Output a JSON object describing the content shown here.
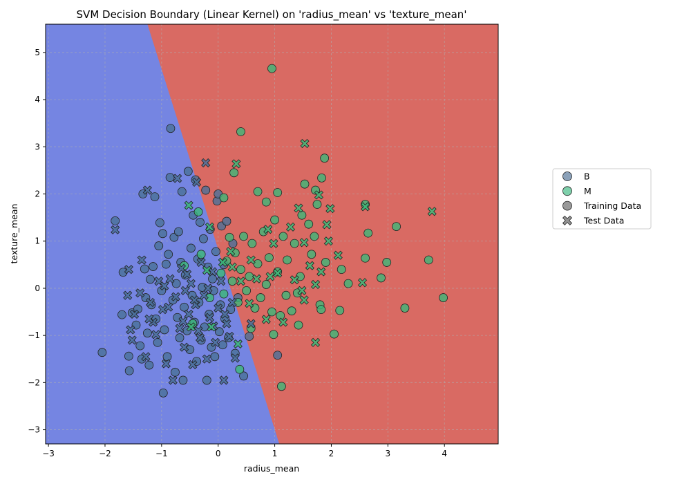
{
  "chart_data": {
    "type": "scatter",
    "title": "SVM Decision Boundary (Linear Kernel) on 'radius_mean' vs 'texture_mean'",
    "xlabel": "radius_mean",
    "ylabel": "texture_mean",
    "xlim": [
      -3.05,
      4.95
    ],
    "ylim": [
      -3.3,
      5.6
    ],
    "xticks": [
      -3,
      -2,
      -1,
      0,
      1,
      2,
      3,
      4
    ],
    "yticks": [
      -3,
      -2,
      -1,
      0,
      1,
      2,
      3,
      4,
      5
    ],
    "grid": true,
    "legend_placement": "right",
    "decision_boundary": {
      "line_points": [
        [
          1.08,
          -3.3
        ],
        [
          -1.25,
          5.6
        ]
      ],
      "left_region_color": "#7585e2",
      "right_region_color": "#d96a63"
    },
    "colors": {
      "B": "#4a7099",
      "M": "#3cb878",
      "marker_edge": "#222222"
    },
    "legend": {
      "entries": [
        {
          "label": "B",
          "marker": "circle",
          "color": "#6e8aa8"
        },
        {
          "label": "M",
          "marker": "circle",
          "color": "#5ec496"
        },
        {
          "label": "Training Data",
          "marker": "circle",
          "color": "#808080"
        },
        {
          "label": "Test Data",
          "marker": "x",
          "color": "#808080"
        }
      ]
    },
    "series": [
      {
        "name": "B",
        "kind": "Training Data",
        "marker": "circle",
        "points": [
          [
            -2.05,
            -1.36
          ],
          [
            -1.82,
            1.43
          ],
          [
            -1.7,
            -0.56
          ],
          [
            -1.68,
            0.34
          ],
          [
            -1.58,
            -1.44
          ],
          [
            -1.57,
            -1.75
          ],
          [
            -1.52,
            -0.52
          ],
          [
            -1.45,
            -0.78
          ],
          [
            -1.42,
            -0.44
          ],
          [
            -1.38,
            -1.22
          ],
          [
            -1.35,
            -1.5
          ],
          [
            -1.33,
            2.0
          ],
          [
            -1.3,
            0.41
          ],
          [
            -1.28,
            -0.2
          ],
          [
            -1.25,
            -0.95
          ],
          [
            -1.22,
            -1.63
          ],
          [
            -1.2,
            0.19
          ],
          [
            -1.18,
            -0.35
          ],
          [
            -1.15,
            0.46
          ],
          [
            -1.12,
            1.94
          ],
          [
            -1.1,
            -0.65
          ],
          [
            -1.07,
            -1.15
          ],
          [
            -1.05,
            0.9
          ],
          [
            -1.03,
            1.39
          ],
          [
            -1.0,
            -0.05
          ],
          [
            -0.98,
            1.16
          ],
          [
            -0.97,
            -2.22
          ],
          [
            -0.95,
            -0.88
          ],
          [
            -0.92,
            0.51
          ],
          [
            -0.9,
            -1.45
          ],
          [
            -0.88,
            0.72
          ],
          [
            -0.85,
            2.35
          ],
          [
            -0.84,
            3.39
          ],
          [
            -0.8,
            -0.25
          ],
          [
            -0.78,
            1.08
          ],
          [
            -0.76,
            -1.78
          ],
          [
            -0.74,
            0.1
          ],
          [
            -0.72,
            -0.62
          ],
          [
            -0.7,
            1.2
          ],
          [
            -0.68,
            -1.05
          ],
          [
            -0.66,
            0.55
          ],
          [
            -0.64,
            2.05
          ],
          [
            -0.62,
            -1.95
          ],
          [
            -0.6,
            -0.4
          ],
          [
            -0.58,
            0.28
          ],
          [
            -0.55,
            -0.9
          ],
          [
            -0.53,
            2.48
          ],
          [
            -0.5,
            -1.3
          ],
          [
            -0.48,
            0.85
          ],
          [
            -0.46,
            -0.15
          ],
          [
            -0.44,
            1.55
          ],
          [
            -0.42,
            -0.72
          ],
          [
            -0.4,
            2.3
          ],
          [
            -0.38,
            -1.55
          ],
          [
            -0.36,
            0.62
          ],
          [
            -0.34,
            -0.3
          ],
          [
            -0.32,
            1.4
          ],
          [
            -0.3,
            -1.1
          ],
          [
            -0.28,
            0.02
          ],
          [
            -0.26,
            1.05
          ],
          [
            -0.24,
            -0.82
          ],
          [
            -0.22,
            2.08
          ],
          [
            -0.2,
            -1.95
          ],
          [
            -0.18,
            0.45
          ],
          [
            -0.16,
            -0.55
          ],
          [
            -0.14,
            1.25
          ],
          [
            -0.12,
            -1.25
          ],
          [
            -0.1,
            0.2
          ],
          [
            -0.08,
            -0.05
          ],
          [
            -0.06,
            -1.45
          ],
          [
            -0.04,
            0.78
          ],
          [
            -0.02,
            1.85
          ],
          [
            0.0,
            2.0
          ],
          [
            0.02,
            -0.92
          ],
          [
            0.04,
            -0.35
          ],
          [
            0.06,
            1.32
          ],
          [
            0.08,
            -1.2
          ],
          [
            0.1,
            0.5
          ],
          [
            0.12,
            -0.65
          ],
          [
            0.15,
            1.42
          ],
          [
            0.18,
            -1.05
          ],
          [
            0.22,
            -0.45
          ],
          [
            0.26,
            0.95
          ],
          [
            0.3,
            -1.38
          ],
          [
            0.35,
            -0.2
          ],
          [
            0.45,
            -1.86
          ],
          [
            0.55,
            -1.02
          ],
          [
            1.05,
            -1.42
          ]
        ]
      },
      {
        "name": "M",
        "kind": "Training Data",
        "marker": "circle",
        "points": [
          [
            0.95,
            4.66
          ],
          [
            0.4,
            3.32
          ],
          [
            1.88,
            2.76
          ],
          [
            0.28,
            2.45
          ],
          [
            0.7,
            2.05
          ],
          [
            1.05,
            2.03
          ],
          [
            1.53,
            2.21
          ],
          [
            1.83,
            2.34
          ],
          [
            0.85,
            1.83
          ],
          [
            1.72,
            2.08
          ],
          [
            0.1,
            1.92
          ],
          [
            -0.35,
            1.62
          ],
          [
            2.6,
            1.78
          ],
          [
            3.15,
            1.31
          ],
          [
            2.65,
            1.17
          ],
          [
            3.72,
            0.6
          ],
          [
            3.98,
            -0.2
          ],
          [
            3.3,
            -0.42
          ],
          [
            2.98,
            0.55
          ],
          [
            2.88,
            0.22
          ],
          [
            2.6,
            0.64
          ],
          [
            2.3,
            0.1
          ],
          [
            2.15,
            -0.47
          ],
          [
            2.05,
            -0.97
          ],
          [
            1.9,
            0.55
          ],
          [
            1.8,
            -0.35
          ],
          [
            1.75,
            1.78
          ],
          [
            1.65,
            0.72
          ],
          [
            1.6,
            1.36
          ],
          [
            1.45,
            0.25
          ],
          [
            1.4,
            -0.1
          ],
          [
            1.35,
            0.95
          ],
          [
            1.3,
            -0.48
          ],
          [
            1.22,
            0.6
          ],
          [
            1.2,
            -0.15
          ],
          [
            1.15,
            1.1
          ],
          [
            1.1,
            -0.58
          ],
          [
            1.05,
            0.35
          ],
          [
            1.0,
            1.45
          ],
          [
            0.95,
            -0.5
          ],
          [
            0.9,
            0.65
          ],
          [
            0.85,
            0.08
          ],
          [
            0.8,
            1.2
          ],
          [
            0.75,
            -0.2
          ],
          [
            0.7,
            0.52
          ],
          [
            0.65,
            -0.42
          ],
          [
            0.6,
            0.95
          ],
          [
            0.55,
            0.25
          ],
          [
            0.5,
            -0.05
          ],
          [
            0.45,
            1.1
          ],
          [
            0.4,
            0.4
          ],
          [
            0.35,
            -0.3
          ],
          [
            0.3,
            0.75
          ],
          [
            0.25,
            0.15
          ],
          [
            0.2,
            1.08
          ],
          [
            0.15,
            0.58
          ],
          [
            0.1,
            -0.12
          ],
          [
            0.05,
            0.32
          ],
          [
            1.12,
            -2.08
          ],
          [
            0.38,
            -1.72
          ],
          [
            -0.6,
            0.48
          ],
          [
            -0.45,
            -0.75
          ],
          [
            -0.3,
            0.72
          ],
          [
            -0.15,
            -0.2
          ],
          [
            0.58,
            -0.85
          ],
          [
            1.42,
            -0.78
          ],
          [
            1.82,
            -0.45
          ],
          [
            0.98,
            -0.98
          ],
          [
            2.18,
            0.4
          ],
          [
            1.7,
            1.1
          ],
          [
            1.48,
            1.55
          ]
        ]
      },
      {
        "name": "B",
        "kind": "Test Data",
        "marker": "x",
        "points": [
          [
            -1.82,
            1.24
          ],
          [
            -1.58,
            0.4
          ],
          [
            -1.55,
            -0.88
          ],
          [
            -1.52,
            -1.1
          ],
          [
            -1.48,
            -0.55
          ],
          [
            -1.35,
            0.6
          ],
          [
            -1.28,
            -1.45
          ],
          [
            -1.25,
            2.08
          ],
          [
            -1.2,
            -0.3
          ],
          [
            -1.15,
            -0.72
          ],
          [
            -1.1,
            -0.98
          ],
          [
            -1.05,
            0.15
          ],
          [
            -0.98,
            -0.45
          ],
          [
            -0.92,
            -1.6
          ],
          [
            -0.85,
            0.2
          ],
          [
            -0.8,
            -1.95
          ],
          [
            -0.75,
            -0.18
          ],
          [
            -0.72,
            2.33
          ],
          [
            -0.68,
            -0.85
          ],
          [
            -0.65,
            0.42
          ],
          [
            -0.6,
            -1.25
          ],
          [
            -0.58,
            -0.05
          ],
          [
            -0.52,
            -0.55
          ],
          [
            -0.48,
            0.1
          ],
          [
            -0.45,
            -1.62
          ],
          [
            -0.4,
            -0.35
          ],
          [
            -0.38,
            2.25
          ],
          [
            -0.35,
            -0.9
          ],
          [
            -0.3,
            0.55
          ],
          [
            -0.25,
            -0.15
          ],
          [
            -0.22,
            2.66
          ],
          [
            -0.2,
            -1.5
          ],
          [
            -0.15,
            -0.62
          ],
          [
            -0.1,
            0.35
          ],
          [
            -0.05,
            -1.15
          ],
          [
            0.0,
            -0.42
          ],
          [
            0.05,
            0.15
          ],
          [
            0.1,
            -1.95
          ],
          [
            0.15,
            -0.75
          ],
          [
            0.2,
            -1.02
          ],
          [
            0.25,
            -0.3
          ],
          [
            0.3,
            -1.48
          ],
          [
            0.58,
            -0.75
          ],
          [
            -1.6,
            -0.15
          ],
          [
            -1.38,
            -0.1
          ],
          [
            -1.22,
            -0.65
          ],
          [
            -0.95,
            0.05
          ],
          [
            -0.88,
            -0.4
          ],
          [
            -0.62,
            -0.7
          ],
          [
            -0.55,
            0.3
          ],
          [
            -0.42,
            -0.25
          ],
          [
            -0.32,
            -1.05
          ],
          [
            -0.18,
            0.0
          ],
          [
            -0.08,
            -0.8
          ],
          [
            0.12,
            -0.55
          ]
        ]
      },
      {
        "name": "M",
        "kind": "Test Data",
        "marker": "x",
        "points": [
          [
            1.53,
            3.07
          ],
          [
            0.32,
            2.64
          ],
          [
            1.78,
            1.98
          ],
          [
            1.42,
            1.7
          ],
          [
            1.98,
            1.69
          ],
          [
            2.6,
            1.73
          ],
          [
            3.78,
            1.63
          ],
          [
            -0.52,
            1.76
          ],
          [
            -0.15,
            1.3
          ],
          [
            0.88,
            1.25
          ],
          [
            1.28,
            1.3
          ],
          [
            1.92,
            1.35
          ],
          [
            2.12,
            0.7
          ],
          [
            1.52,
            0.97
          ],
          [
            0.98,
            0.95
          ],
          [
            0.58,
            0.6
          ],
          [
            0.22,
            0.78
          ],
          [
            0.08,
            0.55
          ],
          [
            1.35,
            0.18
          ],
          [
            1.05,
            0.32
          ],
          [
            1.62,
            0.48
          ],
          [
            2.55,
            0.12
          ],
          [
            1.15,
            -0.72
          ],
          [
            0.85,
            -0.66
          ],
          [
            0.55,
            -0.32
          ],
          [
            0.35,
            -1.18
          ],
          [
            1.72,
            -1.15
          ],
          [
            1.52,
            -0.25
          ],
          [
            1.72,
            0.08
          ],
          [
            -0.12,
            -0.82
          ],
          [
            -0.48,
            -0.82
          ],
          [
            -0.2,
            0.38
          ],
          [
            0.4,
            0.15
          ],
          [
            0.68,
            0.2
          ],
          [
            1.82,
            0.35
          ],
          [
            1.48,
            -0.05
          ],
          [
            1.95,
            1.0
          ],
          [
            0.92,
            0.25
          ],
          [
            0.25,
            0.45
          ]
        ]
      }
    ]
  }
}
